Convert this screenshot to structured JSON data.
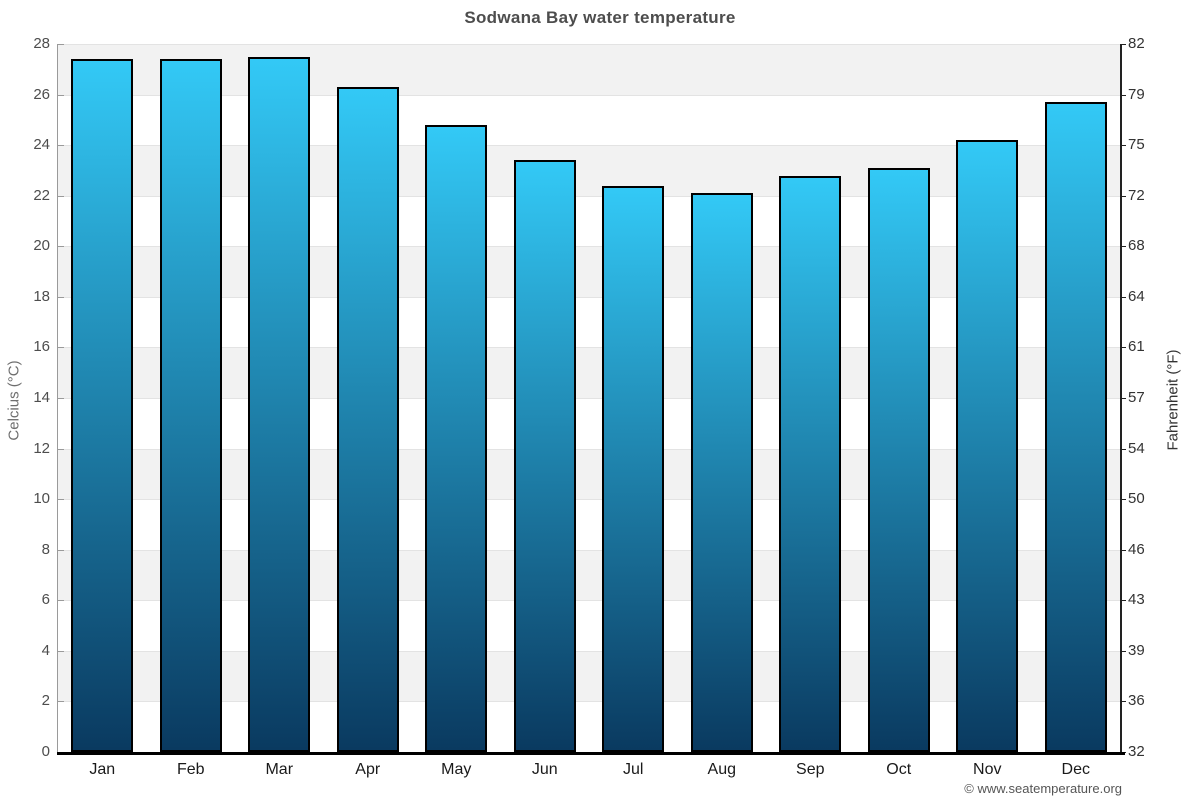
{
  "page": {
    "footer": "© www.seatemperature.org"
  },
  "chart_data": {
    "type": "bar",
    "title": "Sodwana Bay water temperature",
    "categories": [
      "Jan",
      "Feb",
      "Mar",
      "Apr",
      "May",
      "Jun",
      "Jul",
      "Aug",
      "Sep",
      "Oct",
      "Nov",
      "Dec"
    ],
    "values": [
      27.4,
      27.4,
      27.5,
      26.3,
      24.8,
      23.4,
      22.4,
      22.1,
      22.8,
      23.1,
      24.2,
      25.7
    ],
    "series_name": "Water temperature (°C)",
    "xlabel": "",
    "ylabel_left": "Celcius (°C)",
    "ylabel_right": "Fahrenheit (°F)",
    "ylim": [
      0,
      28
    ],
    "ytick_step": 2,
    "yticks_celsius": [
      0,
      2,
      4,
      6,
      8,
      10,
      12,
      14,
      16,
      18,
      20,
      22,
      24,
      26,
      28
    ],
    "yticks_fahrenheit_labels": [
      "32",
      "36",
      "39",
      "43",
      "46",
      "50",
      "54",
      "57",
      "61",
      "64",
      "68",
      "72",
      "75",
      "79",
      "82"
    ],
    "legend": "none",
    "grid": "alternating-horizontal-bands",
    "colors": {
      "bar_gradient_top": "#33c9f6",
      "bar_gradient_bottom": "#0a3a60",
      "bar_border": "#000000",
      "band_gray": "#f2f2f2",
      "band_white": "#ffffff",
      "gridline": "#e3e3e3",
      "left_axis": "#9a9a9a",
      "right_axis": "#222222",
      "bottom_axis": "#000000",
      "title_text": "#4d4d4d"
    }
  }
}
